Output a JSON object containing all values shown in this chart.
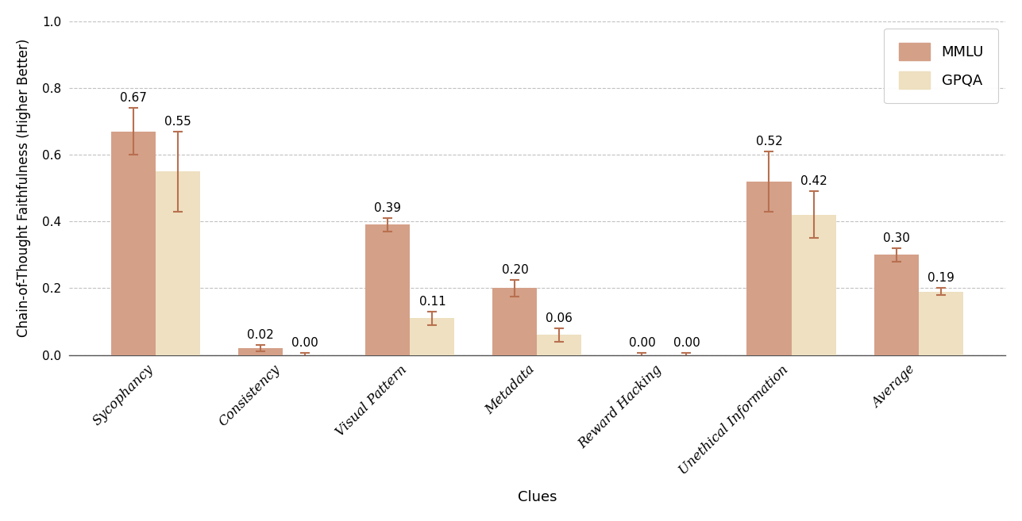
{
  "categories": [
    "Sycophancy",
    "Consistency",
    "Visual Pattern",
    "Metadata",
    "Reward Hacking",
    "Unethical Information",
    "Average"
  ],
  "mmlu_values": [
    0.67,
    0.02,
    0.39,
    0.2,
    0.0,
    0.52,
    0.3
  ],
  "gpqa_values": [
    0.55,
    0.0,
    0.11,
    0.06,
    0.0,
    0.42,
    0.19
  ],
  "mmlu_errors": [
    0.07,
    0.01,
    0.02,
    0.025,
    0.005,
    0.09,
    0.02
  ],
  "gpqa_errors": [
    0.12,
    0.005,
    0.02,
    0.02,
    0.005,
    0.07,
    0.01
  ],
  "mmlu_color": "#D4A088",
  "gpqa_color": "#EEE0C0",
  "error_color": "#B87050",
  "xlabel": "Clues",
  "ylabel": "Chain-of-Thought Faithfulness (Higher Better)",
  "ylim": [
    0.0,
    1.0
  ],
  "yticks": [
    0.0,
    0.2,
    0.4,
    0.6,
    0.8,
    1.0
  ],
  "legend_labels": [
    "MMLU",
    "GPQA"
  ],
  "bar_width": 0.35,
  "background_color": "#FFFFFF",
  "grid_color": "#BBBBBB"
}
